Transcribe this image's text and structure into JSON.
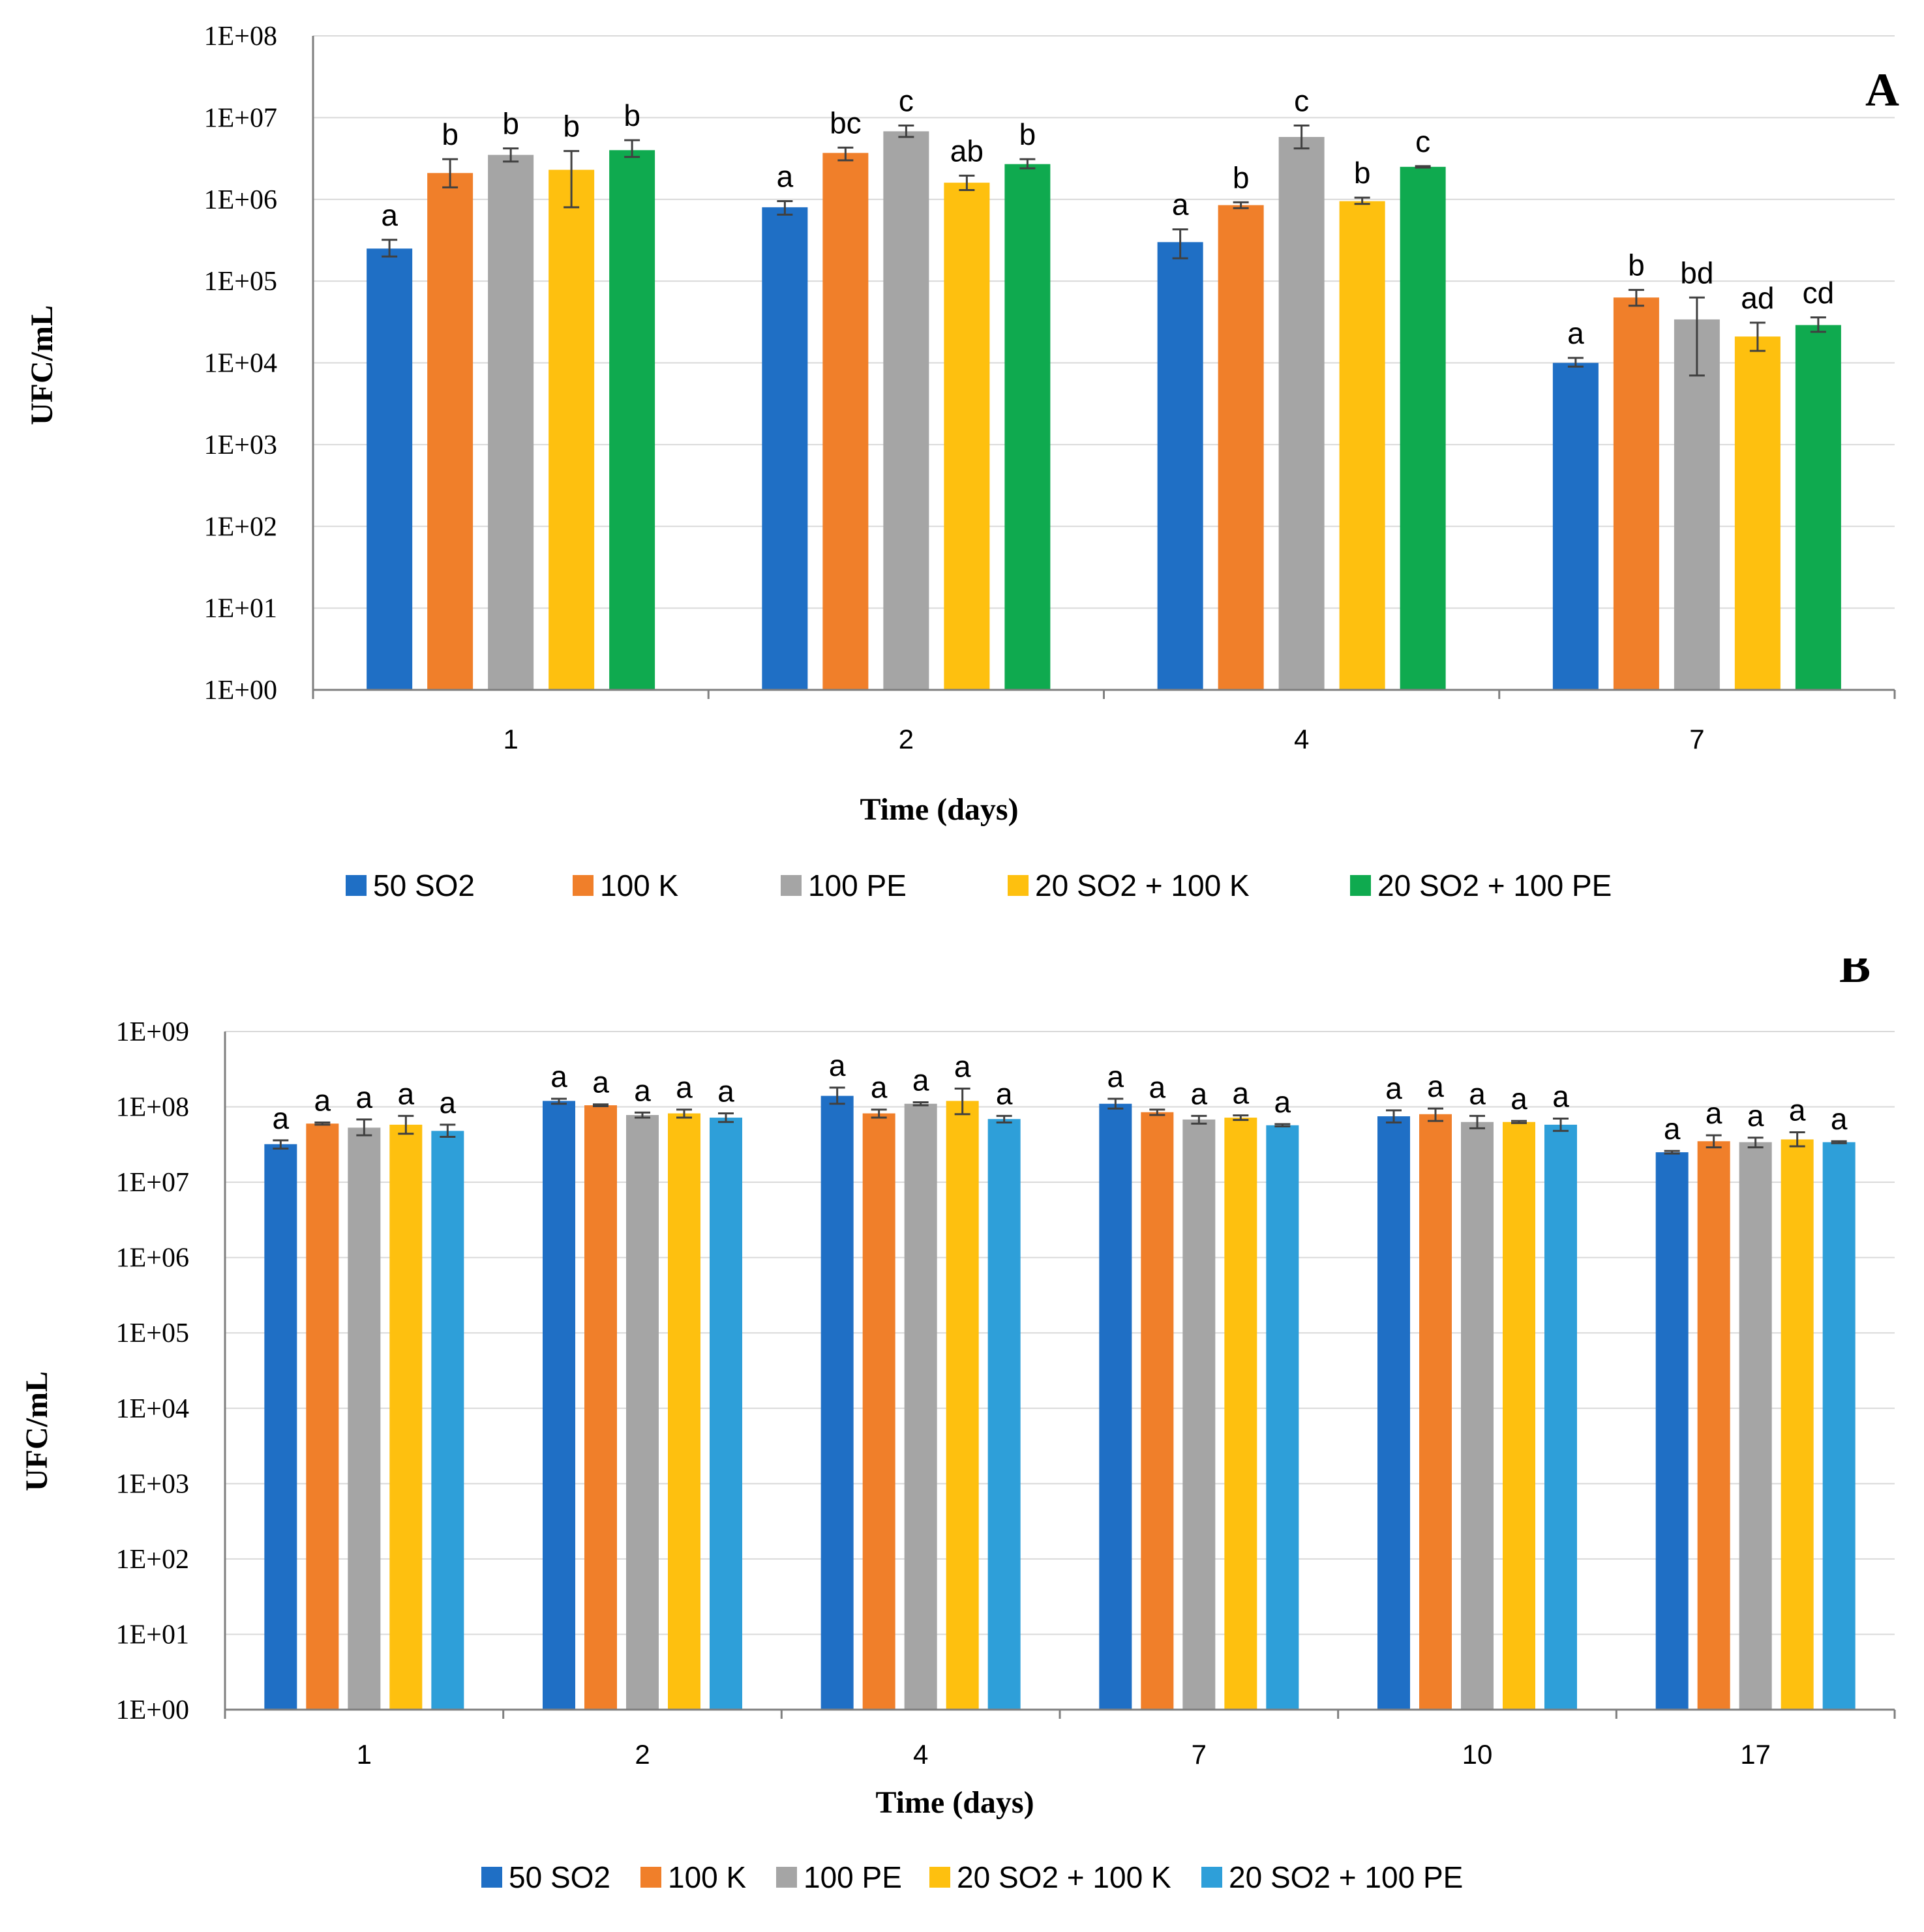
{
  "chart_data": [
    {
      "type": "bar",
      "panel": "A",
      "ylabel": "UFC/mL",
      "xlabel": "Time (days)",
      "yscale": "log",
      "ylim": [
        1,
        100000000
      ],
      "yticks": [
        "1E+00",
        "1E+01",
        "1E+02",
        "1E+03",
        "1E+04",
        "1E+05",
        "1E+06",
        "1E+07",
        "1E+08"
      ],
      "grid": true,
      "legend_position": "bottom",
      "categories": [
        "1",
        "2",
        "4",
        "7"
      ],
      "series": [
        {
          "name": "50 SO2",
          "color": "#1f6fc5",
          "values": [
            250000,
            800000,
            300000,
            10000
          ],
          "err_low": [
            200000,
            650000,
            190000,
            9000
          ],
          "err_high": [
            320000,
            950000,
            430000,
            11500
          ],
          "labels": [
            "a",
            "a",
            "a",
            "a"
          ]
        },
        {
          "name": "100 K",
          "color": "#f07f2a",
          "values": [
            2100000,
            3700000,
            850000,
            63000
          ],
          "err_low": [
            1400000,
            3000000,
            780000,
            50000
          ],
          "err_high": [
            3100000,
            4300000,
            920000,
            78000
          ],
          "labels": [
            "b",
            "bc",
            "b",
            "b"
          ]
        },
        {
          "name": "100 PE",
          "color": "#a5a5a5",
          "values": [
            3500000,
            6800000,
            5800000,
            34000
          ],
          "err_low": [
            2900000,
            5800000,
            4200000,
            7000
          ],
          "err_high": [
            4200000,
            8000000,
            8000000,
            63000
          ],
          "labels": [
            "b",
            "c",
            "c",
            "bd"
          ]
        },
        {
          "name": "20 SO2 + 100 K",
          "color": "#fec00f",
          "values": [
            2300000,
            1600000,
            950000,
            21000
          ],
          "err_low": [
            800000,
            1300000,
            880000,
            14000
          ],
          "err_high": [
            3900000,
            1950000,
            1050000,
            31000
          ],
          "labels": [
            "b",
            "ab",
            "b",
            "ad"
          ]
        },
        {
          "name": "20 SO2 + 100 PE",
          "color": "#0faa4f",
          "values": [
            4000000,
            2700000,
            2500000,
            29000
          ],
          "err_low": [
            3300000,
            2400000,
            2450000,
            24000
          ],
          "err_high": [
            5300000,
            3100000,
            2550000,
            36000
          ],
          "labels": [
            "b",
            "b",
            "c",
            "cd"
          ]
        }
      ]
    },
    {
      "type": "bar",
      "panel": "B",
      "ylabel": "UFC/mL",
      "xlabel": "Time (days)",
      "yscale": "log",
      "ylim": [
        1,
        1000000000
      ],
      "yticks": [
        "1E+00",
        "1E+01",
        "1E+02",
        "1E+03",
        "1E+04",
        "1E+05",
        "1E+06",
        "1E+07",
        "1E+08",
        "1E+09"
      ],
      "grid": true,
      "legend_position": "bottom",
      "categories": [
        "1",
        "2",
        "4",
        "7",
        "10",
        "17"
      ],
      "series": [
        {
          "name": "50 SO2",
          "color": "#1f6fc5",
          "values": [
            32000000,
            120000000,
            140000000,
            110000000,
            75000000,
            25000000
          ],
          "err_low": [
            28000000,
            110000000,
            110000000,
            95000000,
            62000000,
            24000000
          ],
          "err_high": [
            36000000,
            128000000,
            180000000,
            128000000,
            90000000,
            26000000
          ],
          "labels": [
            "a",
            "a",
            "a",
            "a",
            "a",
            "a"
          ]
        },
        {
          "name": "100 K",
          "color": "#f07f2a",
          "values": [
            60000000,
            105000000,
            82000000,
            85000000,
            80000000,
            35000000
          ],
          "err_low": [
            58000000,
            102000000,
            72000000,
            78000000,
            65000000,
            29000000
          ],
          "err_high": [
            62000000,
            108000000,
            92000000,
            92000000,
            95000000,
            42000000
          ],
          "labels": [
            "a",
            "a",
            "a",
            "a",
            "a",
            "a"
          ]
        },
        {
          "name": "100 PE",
          "color": "#a5a5a5",
          "values": [
            53000000,
            78000000,
            110000000,
            68000000,
            63000000,
            34000000
          ],
          "err_low": [
            42000000,
            72000000,
            105000000,
            60000000,
            52000000,
            29000000
          ],
          "err_high": [
            68000000,
            84000000,
            115000000,
            76000000,
            76000000,
            39000000
          ],
          "labels": [
            "a",
            "a",
            "a",
            "a",
            "a",
            "a"
          ]
        },
        {
          "name": "20 SO2 + 100 K",
          "color": "#fec00f",
          "values": [
            58000000,
            82000000,
            120000000,
            72000000,
            63000000,
            37000000
          ],
          "err_low": [
            44000000,
            72000000,
            80000000,
            67000000,
            61000000,
            30000000
          ],
          "err_high": [
            76000000,
            92000000,
            175000000,
            77000000,
            65000000,
            46000000
          ],
          "labels": [
            "a",
            "a",
            "a",
            "a",
            "a",
            "a"
          ]
        },
        {
          "name": "20 SO2 + 100 PE",
          "color": "#2e9fd9",
          "values": [
            48000000,
            72000000,
            69000000,
            57000000,
            58000000,
            34000000
          ],
          "err_low": [
            40000000,
            63000000,
            62000000,
            55000000,
            48000000,
            33000000
          ],
          "err_high": [
            58000000,
            82000000,
            76000000,
            59000000,
            70000000,
            35000000
          ],
          "labels": [
            "a",
            "a",
            "a",
            "a",
            "a",
            "a"
          ]
        }
      ]
    }
  ]
}
